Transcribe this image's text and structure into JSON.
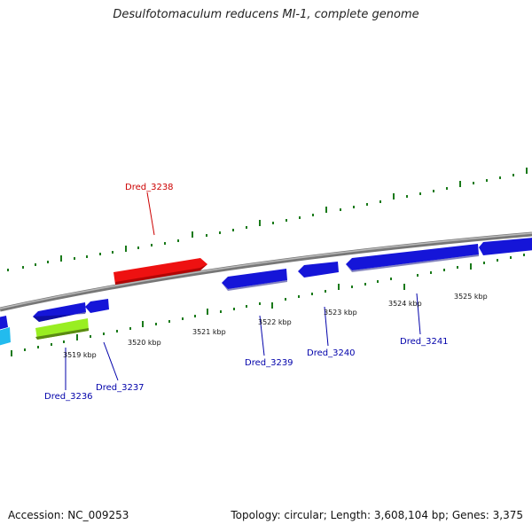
{
  "title": "Desulfotomaculum reducens MI-1, complete genome",
  "footer": {
    "accession": "Accession: NC_009253",
    "summary": "Topology: circular; Length: 3,608,104 bp; Genes: 3,375"
  },
  "colors": {
    "forward_gene": "#ee1111",
    "reverse_gene": "#1515d8",
    "highlight_gene": "#99ee22",
    "other_gene": "#22bbee",
    "backbone": "#888888",
    "tick": "#1a7a1a",
    "forward_label": "#cc0000",
    "reverse_label": "#0000aa"
  },
  "genes": [
    {
      "id": "Dred_3236",
      "strand": "-",
      "label": "Dred_3236"
    },
    {
      "id": "Dred_3237",
      "strand": "-",
      "label": "Dred_3237"
    },
    {
      "id": "Dred_3238",
      "strand": "+",
      "label": "Dred_3238"
    },
    {
      "id": "Dred_3239",
      "strand": "-",
      "label": "Dred_3239"
    },
    {
      "id": "Dred_3240",
      "strand": "-",
      "label": "Dred_3240"
    },
    {
      "id": "Dred_3241",
      "strand": "-",
      "label": "Dred_3241"
    }
  ],
  "scale_labels": [
    "3519 kbp",
    "3520 kbp",
    "3521 kbp",
    "3522 kbp",
    "3523 kbp",
    "3524 kbp",
    "3525 kbp"
  ]
}
